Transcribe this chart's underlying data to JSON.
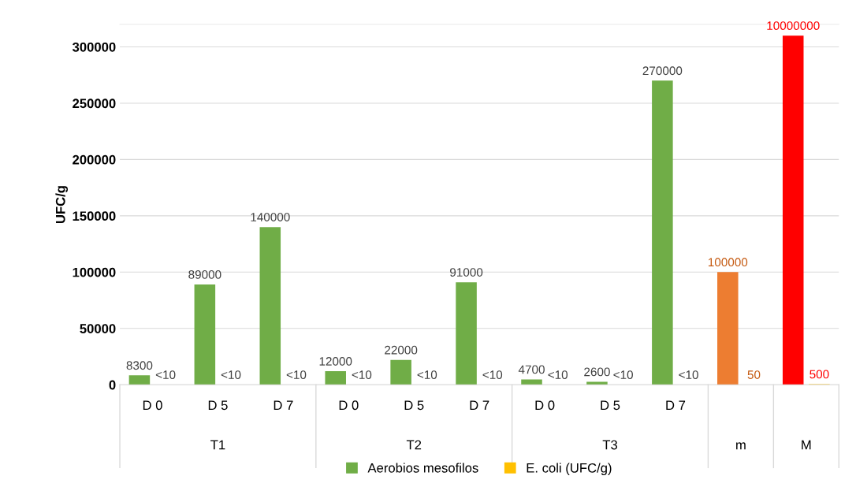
{
  "chart_data": {
    "type": "bar",
    "ylabel": "UFC/g",
    "categories": [
      "D 0",
      "D 5",
      "D 7",
      "D 0",
      "D 5",
      "D 7",
      "D 0",
      "D 5",
      "D 7",
      null,
      null
    ],
    "annotations": [
      "T1",
      "T2",
      "T3",
      "m",
      "M",
      {
        "text": "10000000",
        "y": 310000
      }
    ],
    "series": [
      {
        "name": "Aerobios mesofilos",
        "color": "#70ad47",
        "colors": [
          "#70ad47",
          "#70ad47",
          "#70ad47",
          "#70ad47",
          "#70ad47",
          "#70ad47",
          "#70ad47",
          "#70ad47",
          "#70ad47",
          "#ed7d31",
          "#ff0000"
        ],
        "values": [
          8300,
          89000,
          140000,
          12000,
          22000,
          91000,
          4700,
          2600,
          270000,
          100000,
          310000
        ],
        "value_labels": [
          "8300",
          "89000",
          "140000",
          "12000",
          "22000",
          "91000",
          "4700",
          "2600",
          "270000",
          "100000",
          null
        ]
      },
      {
        "name": "E. coli (UFC/g)",
        "color": "#ffc000",
        "values": [
          10,
          10,
          10,
          10,
          10,
          10,
          10,
          10,
          10,
          50,
          500
        ],
        "value_labels": [
          "<10",
          "<10",
          "<10",
          "<10",
          "<10",
          "<10",
          "<10",
          "<10",
          "<10",
          "50",
          "500"
        ]
      }
    ],
    "ylim": [
      0,
      320000
    ],
    "yticks": [
      0,
      50000,
      100000,
      150000,
      200000,
      250000,
      300000
    ],
    "grid": "y",
    "legend": "bottom"
  }
}
